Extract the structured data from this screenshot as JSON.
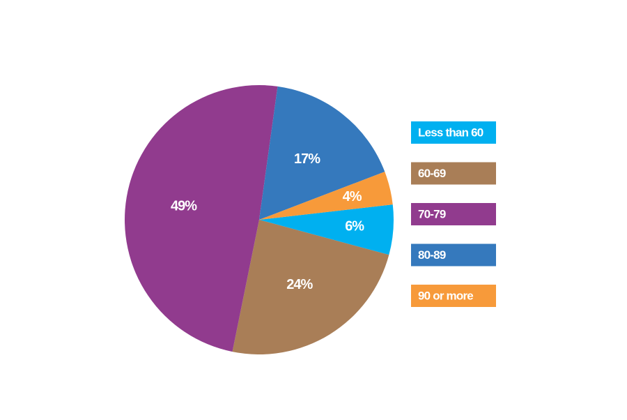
{
  "chart_data": {
    "type": "pie",
    "categories": [
      "Less than 60",
      "60-69",
      "70-79",
      "80-89",
      "90 or more"
    ],
    "values": [
      6,
      24,
      49,
      17,
      4
    ],
    "value_labels": [
      "6%",
      "24%",
      "49%",
      "17%",
      "4%"
    ],
    "colors": [
      "#00b0f0",
      "#a97e57",
      "#913b8e",
      "#3579bd",
      "#f79a3a"
    ],
    "legend": "right"
  }
}
